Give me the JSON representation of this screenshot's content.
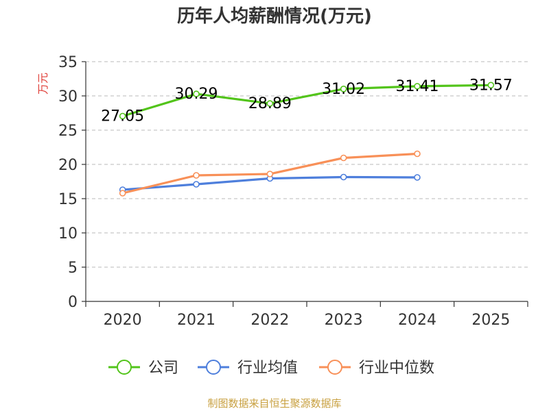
{
  "chart_data": {
    "type": "line",
    "title": "历年人均薪酬情况(万元)",
    "ylabel": "万元",
    "xlabel": "",
    "ylim": [
      0,
      35
    ],
    "yticks": [
      0,
      5,
      10,
      15,
      20,
      25,
      30,
      35
    ],
    "categories": [
      "2020",
      "2021",
      "2022",
      "2023",
      "2024",
      "2025"
    ],
    "grid": true,
    "legend_position": "bottom",
    "series": [
      {
        "name": "公司",
        "color": "#52c41a",
        "values": [
          27.05,
          30.29,
          28.89,
          31.02,
          31.41,
          31.57
        ],
        "labels": [
          "27.05",
          "30.29",
          "28.89",
          "31.02",
          "31.41",
          "31.57"
        ]
      },
      {
        "name": "行业均值",
        "color": "#4e7fdc",
        "values": [
          16.3,
          17.1,
          17.95,
          18.15,
          18.1,
          null
        ]
      },
      {
        "name": "行业中位数",
        "color": "#f89058",
        "values": [
          15.8,
          18.4,
          18.6,
          20.95,
          21.55,
          null
        ]
      }
    ]
  },
  "source": "制图数据来自恒生聚源数据库"
}
